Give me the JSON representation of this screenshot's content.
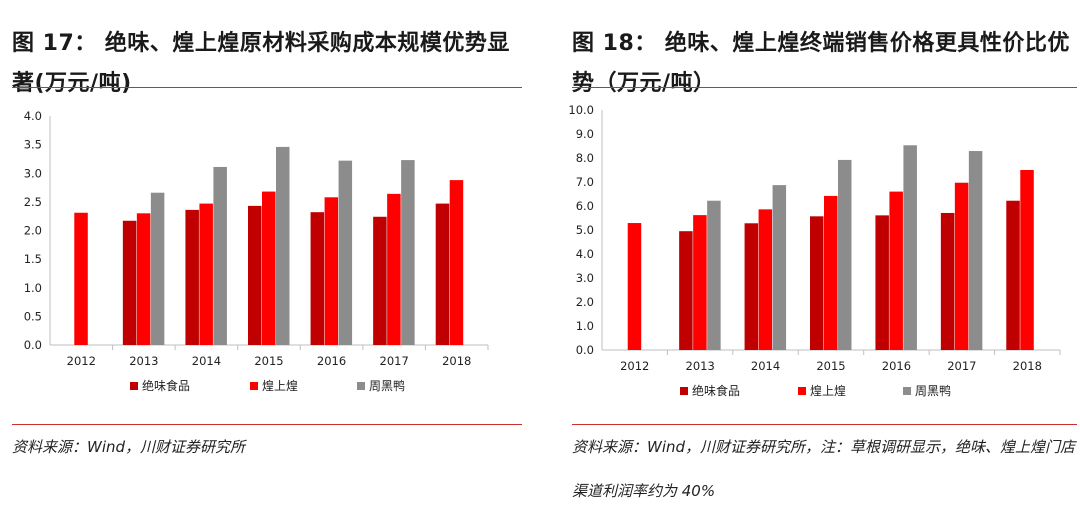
{
  "left": {
    "title": "图 17： 绝味、煌上煌原材料采购成本规模优势显著(万元/吨)",
    "source": "资料来源：Wind，川财证券研究所",
    "chart_data": {
      "type": "bar",
      "categories": [
        "2012",
        "2013",
        "2014",
        "2015",
        "2016",
        "2017",
        "2018"
      ],
      "series": [
        {
          "name": "绝味食品",
          "values": [
            null,
            2.17,
            2.36,
            2.43,
            2.32,
            2.24,
            2.47
          ]
        },
        {
          "name": "煌上煌",
          "values": [
            2.31,
            2.3,
            2.47,
            2.68,
            2.58,
            2.64,
            2.88
          ]
        },
        {
          "name": "周黑鸭",
          "values": [
            null,
            2.66,
            3.11,
            3.46,
            3.22,
            3.23,
            null
          ]
        }
      ],
      "yticks": [
        "4.0",
        "3.5",
        "3.0",
        "2.5",
        "2.0",
        "1.5",
        "1.0",
        "0.5",
        "0.0"
      ],
      "ylim": [
        0,
        4.0
      ],
      "title": "",
      "xlabel": "",
      "ylabel": "",
      "legend": "bottom"
    }
  },
  "right": {
    "title": "图 18： 绝味、煌上煌终端销售价格更具性价比优势（万元/吨）",
    "source": "资料来源：Wind，川财证券研究所，注：草根调研显示，绝味、煌上煌门店渠道利润率约为 40%",
    "chart_data": {
      "type": "bar",
      "categories": [
        "2012",
        "2013",
        "2014",
        "2015",
        "2016",
        "2017",
        "2018"
      ],
      "series": [
        {
          "name": "绝味食品",
          "values": [
            null,
            4.95,
            5.28,
            5.57,
            5.61,
            5.71,
            6.22
          ]
        },
        {
          "name": "煌上煌",
          "values": [
            5.29,
            5.62,
            5.86,
            6.42,
            6.6,
            6.97,
            7.5
          ]
        },
        {
          "name": "周黑鸭",
          "values": [
            null,
            6.22,
            6.87,
            7.92,
            8.53,
            8.29,
            null
          ]
        }
      ],
      "yticks": [
        "10.0",
        "9.0",
        "8.0",
        "7.0",
        "6.0",
        "5.0",
        "4.0",
        "3.0",
        "2.0",
        "1.0",
        "0.0"
      ],
      "ylim": [
        0,
        10.0
      ],
      "title": "",
      "xlabel": "",
      "ylabel": "",
      "legend": "bottom"
    }
  },
  "colors": {
    "series": [
      "#c00000",
      "#ff0000",
      "#8c8c8c"
    ],
    "rule": "#c8312b",
    "axis": "#bfbfbf"
  }
}
